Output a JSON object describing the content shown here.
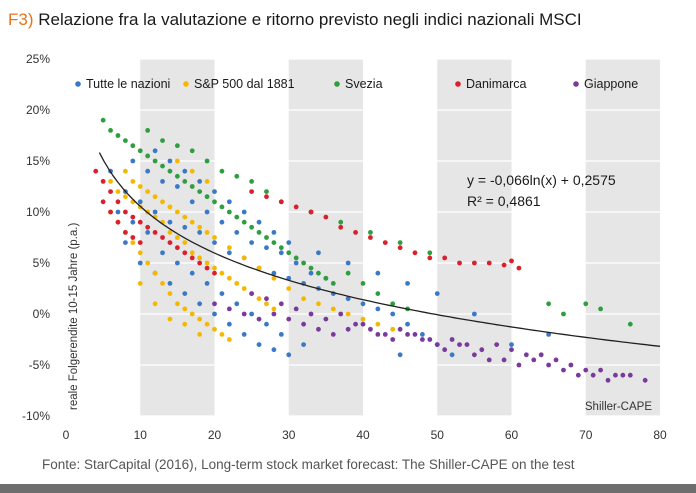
{
  "title_tag": "F3)",
  "title_text": "Relazione fra la valutazione e ritorno previsto negli indici nazionali MSCI",
  "source": "Fonte: StarCapital (2016), Long-term stock market forecast: The Shiller-CAPE on the test",
  "chart_data": {
    "type": "scatter",
    "xlabel": "Shiller-CAPE",
    "ylabel": "reale Folgerendite 10-15 Jahre (p.a.)",
    "xlim": [
      0,
      80
    ],
    "ylim": [
      -10,
      25
    ],
    "x_ticks": [
      0,
      10,
      20,
      30,
      40,
      50,
      60,
      70,
      80
    ],
    "y_ticks": [
      25,
      20,
      15,
      10,
      5,
      0,
      -5,
      -10
    ],
    "y_tick_labels": [
      "25%",
      "20%",
      "15%",
      "10%",
      "5%",
      "0%",
      "-5%",
      "-10%"
    ],
    "grid_bands_x": [
      [
        10,
        20
      ],
      [
        30,
        40
      ],
      [
        50,
        60
      ],
      [
        70,
        80
      ]
    ],
    "legend": "top",
    "series": [
      {
        "name": "Tutte le nazioni",
        "color": "#3a78c8",
        "points": [
          [
            6,
            14
          ],
          [
            8,
            12
          ],
          [
            10,
            11
          ],
          [
            12,
            10
          ],
          [
            14,
            9
          ],
          [
            16,
            8.5
          ],
          [
            18,
            8
          ],
          [
            20,
            7
          ],
          [
            22,
            6
          ],
          [
            24,
            5.5
          ],
          [
            26,
            4.5
          ],
          [
            28,
            4
          ],
          [
            30,
            3.5
          ],
          [
            32,
            3
          ],
          [
            34,
            2.5
          ],
          [
            36,
            2
          ],
          [
            38,
            1.5
          ],
          [
            40,
            1
          ],
          [
            42,
            0.5
          ],
          [
            44,
            0
          ],
          [
            46,
            -1
          ],
          [
            48,
            -2
          ],
          [
            50,
            -3
          ],
          [
            52,
            -4
          ],
          [
            9,
            15
          ],
          [
            11,
            14
          ],
          [
            13,
            13
          ],
          [
            15,
            12.5
          ],
          [
            17,
            11
          ],
          [
            19,
            10
          ],
          [
            21,
            9
          ],
          [
            23,
            8
          ],
          [
            25,
            7
          ],
          [
            27,
            6.5
          ],
          [
            29,
            6
          ],
          [
            31,
            5
          ],
          [
            33,
            4
          ],
          [
            35,
            3.5
          ],
          [
            8,
            7
          ],
          [
            10,
            5
          ],
          [
            12,
            4
          ],
          [
            14,
            3
          ],
          [
            16,
            2
          ],
          [
            18,
            1
          ],
          [
            20,
            0
          ],
          [
            22,
            -1
          ],
          [
            24,
            -2
          ],
          [
            26,
            -3
          ],
          [
            28,
            -3.5
          ],
          [
            30,
            -4
          ],
          [
            32,
            -3
          ],
          [
            7,
            10
          ],
          [
            9,
            9
          ],
          [
            11,
            8
          ],
          [
            13,
            6
          ],
          [
            15,
            5
          ],
          [
            17,
            4
          ],
          [
            19,
            3
          ],
          [
            21,
            2
          ],
          [
            23,
            1
          ],
          [
            25,
            0
          ],
          [
            27,
            -1
          ],
          [
            29,
            -2
          ],
          [
            12,
            16
          ],
          [
            14,
            15
          ],
          [
            16,
            14
          ],
          [
            18,
            13
          ],
          [
            20,
            12
          ],
          [
            22,
            11
          ],
          [
            24,
            10
          ],
          [
            26,
            9
          ],
          [
            28,
            8
          ],
          [
            30,
            7
          ],
          [
            34,
            6
          ],
          [
            38,
            5
          ],
          [
            42,
            4
          ],
          [
            46,
            3
          ],
          [
            50,
            2
          ],
          [
            55,
            0
          ],
          [
            60,
            -3
          ],
          [
            65,
            -2
          ],
          [
            45,
            -4
          ]
        ]
      },
      {
        "name": "S&P 500 dal 1881",
        "color": "#f5b800",
        "points": [
          [
            6,
            13
          ],
          [
            7,
            12
          ],
          [
            8,
            11.5
          ],
          [
            9,
            11
          ],
          [
            10,
            10.5
          ],
          [
            11,
            10
          ],
          [
            12,
            9.5
          ],
          [
            13,
            9
          ],
          [
            14,
            8
          ],
          [
            15,
            7.5
          ],
          [
            16,
            7
          ],
          [
            17,
            6
          ],
          [
            18,
            5.5
          ],
          [
            19,
            5
          ],
          [
            20,
            4.5
          ],
          [
            21,
            4
          ],
          [
            22,
            3.5
          ],
          [
            23,
            3
          ],
          [
            24,
            2.5
          ],
          [
            25,
            2
          ],
          [
            26,
            1.5
          ],
          [
            27,
            1
          ],
          [
            28,
            0.5
          ],
          [
            6,
            10
          ],
          [
            7,
            9
          ],
          [
            8,
            8
          ],
          [
            9,
            7
          ],
          [
            10,
            6
          ],
          [
            11,
            5
          ],
          [
            12,
            4
          ],
          [
            13,
            3
          ],
          [
            14,
            2
          ],
          [
            15,
            1
          ],
          [
            16,
            0.5
          ],
          [
            17,
            0
          ],
          [
            18,
            -0.5
          ],
          [
            19,
            -1
          ],
          [
            20,
            -1.5
          ],
          [
            21,
            -2
          ],
          [
            22,
            -2.5
          ],
          [
            8,
            14
          ],
          [
            9,
            13
          ],
          [
            10,
            12.5
          ],
          [
            11,
            12
          ],
          [
            12,
            11.5
          ],
          [
            13,
            11
          ],
          [
            14,
            10.5
          ],
          [
            15,
            10
          ],
          [
            16,
            9.5
          ],
          [
            17,
            9
          ],
          [
            18,
            8.5
          ],
          [
            19,
            8
          ],
          [
            20,
            7.5
          ],
          [
            22,
            6.5
          ],
          [
            24,
            5.5
          ],
          [
            26,
            4.5
          ],
          [
            28,
            3.5
          ],
          [
            30,
            2.5
          ],
          [
            32,
            1.5
          ],
          [
            34,
            1
          ],
          [
            36,
            0.5
          ],
          [
            38,
            0
          ],
          [
            40,
            -0.5
          ],
          [
            42,
            -1
          ],
          [
            44,
            -1.5
          ],
          [
            10,
            3
          ],
          [
            12,
            1
          ],
          [
            14,
            -0.5
          ],
          [
            16,
            -1
          ],
          [
            18,
            -2
          ],
          [
            15,
            15
          ],
          [
            17,
            14
          ],
          [
            19,
            13
          ]
        ]
      },
      {
        "name": "Svezia",
        "color": "#2e9e3e",
        "points": [
          [
            5,
            19
          ],
          [
            6,
            18
          ],
          [
            7,
            17.5
          ],
          [
            8,
            17
          ],
          [
            9,
            16.5
          ],
          [
            10,
            16
          ],
          [
            11,
            15.5
          ],
          [
            12,
            15
          ],
          [
            13,
            14.5
          ],
          [
            14,
            14
          ],
          [
            15,
            13.5
          ],
          [
            16,
            13
          ],
          [
            17,
            12.5
          ],
          [
            18,
            12
          ],
          [
            19,
            11.5
          ],
          [
            20,
            11
          ],
          [
            21,
            10.5
          ],
          [
            22,
            10
          ],
          [
            23,
            9.5
          ],
          [
            24,
            9
          ],
          [
            25,
            8.5
          ],
          [
            26,
            8
          ],
          [
            27,
            7.5
          ],
          [
            28,
            7
          ],
          [
            29,
            6.5
          ],
          [
            30,
            6
          ],
          [
            31,
            5.5
          ],
          [
            32,
            5
          ],
          [
            33,
            4.5
          ],
          [
            34,
            4
          ],
          [
            35,
            3.5
          ],
          [
            36,
            3
          ],
          [
            38,
            4
          ],
          [
            40,
            3
          ],
          [
            42,
            2
          ],
          [
            44,
            1
          ],
          [
            46,
            0.5
          ],
          [
            11,
            18
          ],
          [
            13,
            17
          ],
          [
            15,
            16.5
          ],
          [
            17,
            16
          ],
          [
            19,
            15
          ],
          [
            21,
            14
          ],
          [
            23,
            13.5
          ],
          [
            25,
            13
          ],
          [
            27,
            12
          ],
          [
            29,
            11
          ],
          [
            33,
            10
          ],
          [
            37,
            9
          ],
          [
            41,
            8
          ],
          [
            45,
            7
          ],
          [
            49,
            6
          ],
          [
            65,
            1
          ],
          [
            67,
            0
          ],
          [
            72,
            0.5
          ],
          [
            76,
            -1
          ],
          [
            70,
            1
          ]
        ]
      },
      {
        "name": "Danimarca",
        "color": "#d9202c",
        "points": [
          [
            4,
            14
          ],
          [
            5,
            13
          ],
          [
            6,
            12
          ],
          [
            7,
            11
          ],
          [
            8,
            10
          ],
          [
            9,
            9.5
          ],
          [
            10,
            9
          ],
          [
            11,
            8.5
          ],
          [
            12,
            8
          ],
          [
            13,
            7.5
          ],
          [
            14,
            7
          ],
          [
            15,
            6.5
          ],
          [
            16,
            6
          ],
          [
            17,
            5.5
          ],
          [
            18,
            5
          ],
          [
            19,
            4.5
          ],
          [
            20,
            4
          ],
          [
            5,
            11
          ],
          [
            6,
            10
          ],
          [
            7,
            9
          ],
          [
            8,
            8
          ],
          [
            9,
            7.5
          ],
          [
            10,
            7
          ],
          [
            25,
            12
          ],
          [
            27,
            11.5
          ],
          [
            29,
            11
          ],
          [
            31,
            10.5
          ],
          [
            33,
            10
          ],
          [
            35,
            9.5
          ],
          [
            37,
            8.5
          ],
          [
            39,
            8
          ],
          [
            41,
            7.5
          ],
          [
            43,
            7
          ],
          [
            45,
            6.5
          ],
          [
            47,
            6
          ],
          [
            49,
            5.5
          ],
          [
            51,
            5.5
          ],
          [
            53,
            5
          ],
          [
            55,
            5
          ],
          [
            57,
            5
          ],
          [
            59,
            4.8
          ],
          [
            61,
            4.5
          ],
          [
            60,
            5.2
          ]
        ]
      },
      {
        "name": "Giappone",
        "color": "#7a3a9c",
        "points": [
          [
            20,
            1
          ],
          [
            22,
            0.5
          ],
          [
            24,
            0
          ],
          [
            26,
            -0.5
          ],
          [
            28,
            0
          ],
          [
            30,
            -0.5
          ],
          [
            32,
            -1
          ],
          [
            34,
            -1.5
          ],
          [
            36,
            -2
          ],
          [
            38,
            -1.5
          ],
          [
            40,
            -1
          ],
          [
            42,
            -2
          ],
          [
            44,
            -2.5
          ],
          [
            46,
            -2
          ],
          [
            48,
            -2.5
          ],
          [
            50,
            -3
          ],
          [
            52,
            -2.5
          ],
          [
            54,
            -3
          ],
          [
            56,
            -3.5
          ],
          [
            58,
            -3
          ],
          [
            60,
            -3.5
          ],
          [
            62,
            -4
          ],
          [
            64,
            -4
          ],
          [
            66,
            -4.5
          ],
          [
            68,
            -5
          ],
          [
            70,
            -5.5
          ],
          [
            72,
            -5.5
          ],
          [
            74,
            -6
          ],
          [
            76,
            -6
          ],
          [
            78,
            -6.5
          ],
          [
            25,
            2
          ],
          [
            27,
            1.5
          ],
          [
            29,
            1
          ],
          [
            31,
            0.5
          ],
          [
            33,
            0
          ],
          [
            35,
            -0.5
          ],
          [
            37,
            0
          ],
          [
            39,
            -1
          ],
          [
            41,
            -1.5
          ],
          [
            43,
            -2
          ],
          [
            45,
            -1.5
          ],
          [
            47,
            -2
          ],
          [
            49,
            -2.5
          ],
          [
            51,
            -3.5
          ],
          [
            53,
            -3
          ],
          [
            55,
            -4
          ],
          [
            57,
            -4.5
          ],
          [
            59,
            -4.5
          ],
          [
            61,
            -5
          ],
          [
            63,
            -4.5
          ],
          [
            65,
            -5
          ],
          [
            67,
            -5.5
          ],
          [
            69,
            -6
          ],
          [
            71,
            -6
          ],
          [
            73,
            -6.5
          ],
          [
            75,
            -6
          ]
        ]
      }
    ],
    "trendline": {
      "type": "log",
      "a": -0.066,
      "b": 0.2575,
      "x_range": [
        4.5,
        80
      ],
      "color": "#222222"
    },
    "annotations": [
      "y = -0,066ln(x) + 0,2575",
      "R² = 0,4861"
    ]
  }
}
